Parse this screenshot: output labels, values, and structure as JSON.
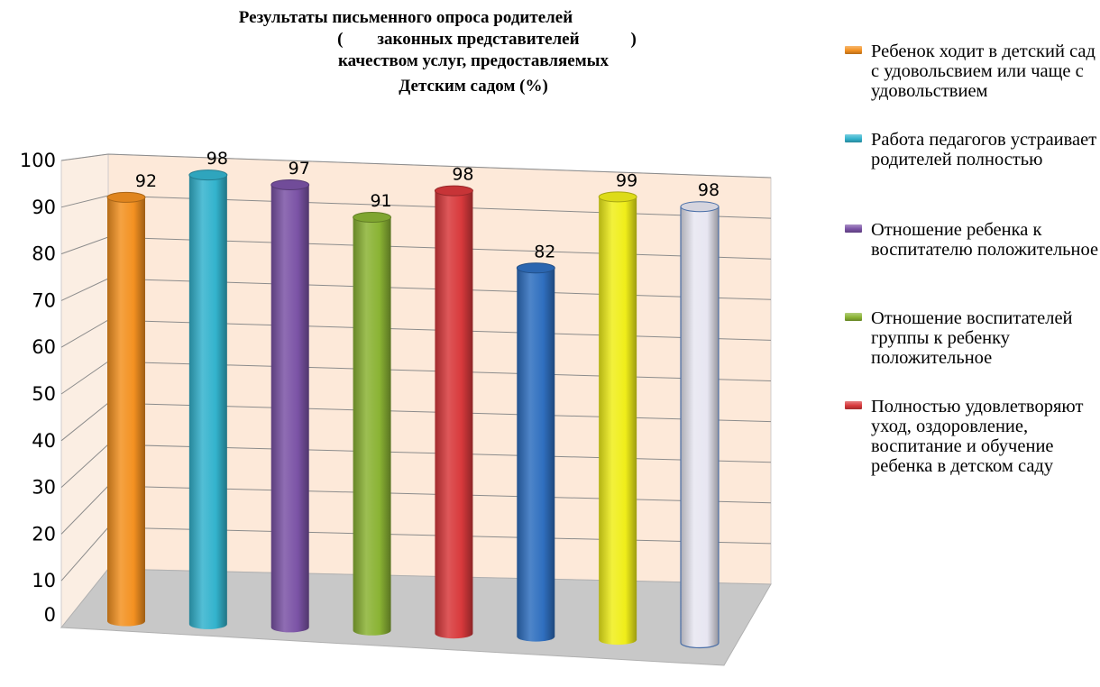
{
  "chart_data": {
    "type": "bar",
    "title_lines": [
      "Результаты письменного опроса родителей",
      "(        законных представителей            )",
      "качеством услуг, предоставляемых",
      "Детским садом (%)"
    ],
    "ylim": [
      0,
      100
    ],
    "yticks": [
      "0",
      "10",
      "20",
      "30",
      "40",
      "50",
      "60",
      "70",
      "80",
      "90",
      "100"
    ],
    "legend_position": "right",
    "grid": true,
    "series": [
      {
        "name": "Ребенок ходит в детский сад с удовольсвием или чаще с удовольствием",
        "value": 92,
        "label": "92",
        "color": "#f39121"
      },
      {
        "name": "Работа педагогов устраивает родителей полностью",
        "value": 98,
        "label": "98",
        "color": "#33b3cd"
      },
      {
        "name": "Отношение ребенка к воспитателю положительное",
        "value": 97,
        "label": "97",
        "color": "#7b53a6"
      },
      {
        "name": "Отношение воспитателей группы к ребенку положительное",
        "value": 91,
        "label": "91",
        "color": "#8ab334"
      },
      {
        "name": "Полностью удовлетворяют уход, оздоровление, воспитание и обучение ребенка в детском саду",
        "value": 98,
        "label": "98",
        "color": "#d8393c"
      },
      {
        "name": "",
        "value": 82,
        "label": "82",
        "color": "#2f6fbf"
      },
      {
        "name": "",
        "value": 99,
        "label": "99",
        "color": "#f0ee1a"
      },
      {
        "name": "",
        "value": 98,
        "label": "98",
        "color": "#e7e6f1"
      }
    ]
  }
}
